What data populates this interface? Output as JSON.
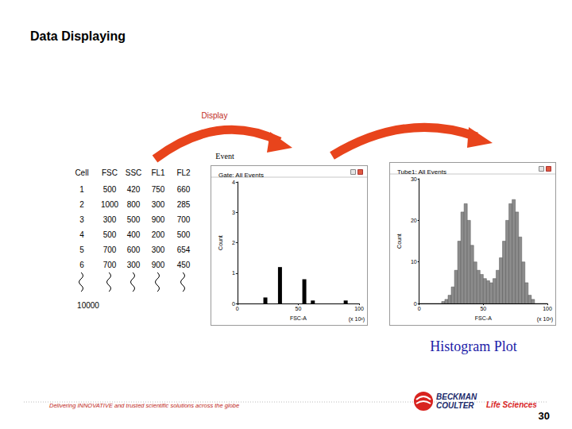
{
  "slide": {
    "title": "Data Displaying",
    "arrow_label": "Display",
    "event_label": "Event",
    "caption": "Histogram Plot",
    "footer": "Delivering INNOVATIVE and trusted scientific solutions across the globe",
    "logo": [
      "BECKMAN",
      "COULTER",
      "Life Sciences"
    ],
    "page": "30"
  },
  "table": {
    "columns": [
      "Cell",
      "FSC",
      "SSC",
      "FL1",
      "FL2"
    ],
    "rows": [
      [
        1,
        500,
        420,
        750,
        660
      ],
      [
        2,
        1000,
        800,
        300,
        285
      ],
      [
        3,
        300,
        500,
        900,
        700
      ],
      [
        4,
        500,
        400,
        200,
        500
      ],
      [
        5,
        700,
        600,
        300,
        654
      ],
      [
        6,
        700,
        300,
        900,
        450
      ]
    ],
    "last_row": [
      10000
    ]
  },
  "chart_data": [
    {
      "type": "bar",
      "title": "Gate: All Events",
      "x_label": "FSC-A",
      "y_label": "Count",
      "annotation": "(x 10³)",
      "x": [
        23,
        35,
        55,
        62,
        89
      ],
      "values": [
        0.2,
        1.2,
        0.8,
        0.1,
        0.1
      ],
      "color": "#000000",
      "xlim": [
        0,
        100
      ],
      "xticks": [
        0,
        50,
        100
      ],
      "ylim": [
        0,
        4
      ],
      "yticks": [
        0,
        1,
        2,
        3,
        4
      ],
      "grid": false
    },
    {
      "type": "histogram",
      "title": "Tube1: All Events",
      "x_label": "FSC-A",
      "y_label": "Count",
      "annotation": "(x 10³)",
      "bins": [
        0,
        2.5,
        5,
        7.5,
        10,
        12.5,
        15,
        17.5,
        20,
        22.5,
        25,
        27.5,
        30,
        32.5,
        35,
        37.5,
        40,
        42.5,
        45,
        47.5,
        50,
        52.5,
        55,
        57.5,
        60,
        62.5,
        65,
        67.5,
        70,
        72.5,
        75,
        77.5,
        80,
        82.5,
        85,
        87.5,
        90,
        92.5,
        95,
        97.5,
        100
      ],
      "values": [
        0,
        0,
        0,
        0,
        0,
        0,
        0,
        0.5,
        1,
        2,
        4,
        8,
        15,
        22,
        24,
        20,
        14,
        10,
        8,
        7,
        6,
        5.5,
        5,
        6,
        8,
        11,
        15,
        20,
        24,
        25,
        22,
        16,
        10,
        5,
        2,
        1,
        0,
        0,
        0,
        0
      ],
      "color": "#8c8c8c",
      "xlim": [
        0,
        100
      ],
      "xticks": [
        0,
        50,
        100
      ],
      "ylim": [
        0,
        30
      ],
      "yticks": [
        0,
        10,
        20,
        30
      ],
      "grid": false
    }
  ]
}
